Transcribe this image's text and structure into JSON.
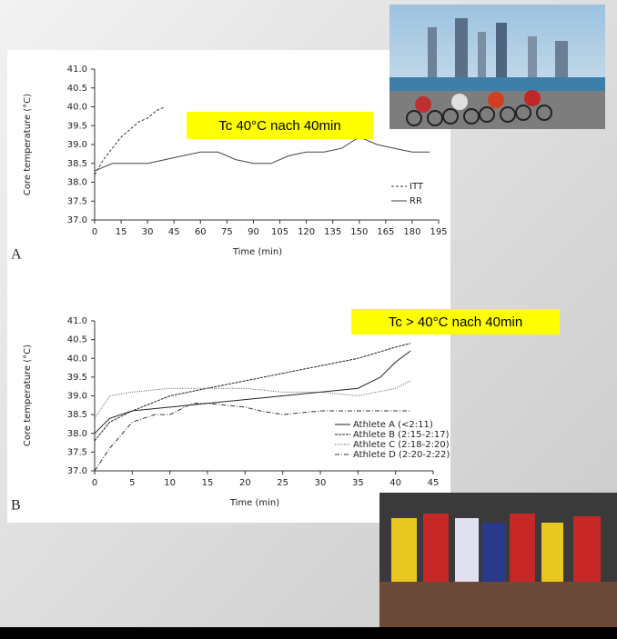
{
  "chart_data": [
    {
      "type": "line",
      "panel_label": "A",
      "x_label": "Time (min)",
      "y_label": "Core temperature (°C)",
      "annotation": "Tc 40°C nach 40min",
      "annotation_color": "#ffff00",
      "legend": "lower right",
      "xlim": [
        0,
        195
      ],
      "xticks": [
        0,
        15,
        30,
        45,
        60,
        75,
        90,
        105,
        120,
        135,
        150,
        165,
        180,
        195
      ],
      "ylim": [
        37,
        41
      ],
      "yticks": [
        {
          "value": 37,
          "label": "37.0"
        },
        37.5,
        {
          "value": 38,
          "label": "38.0"
        },
        38.5,
        {
          "value": 39,
          "label": "39.0"
        },
        39.5,
        {
          "value": 40,
          "label": "40.0"
        },
        40.5,
        {
          "value": 41,
          "label": "41.0"
        }
      ],
      "series": [
        {
          "name": "ITT",
          "color": "#333333",
          "dash": "3,2",
          "x": [
            0,
            5,
            10,
            15,
            20,
            25,
            30,
            35,
            40
          ],
          "values": [
            38.2,
            38.6,
            38.9,
            39.2,
            39.4,
            39.6,
            39.7,
            39.9,
            40.0
          ]
        },
        {
          "name": "RR",
          "color": "#444444",
          "dash": "none",
          "x": [
            0,
            10,
            20,
            30,
            40,
            50,
            60,
            70,
            80,
            90,
            100,
            110,
            120,
            130,
            140,
            150,
            160,
            170,
            180,
            190
          ],
          "values": [
            38.3,
            38.5,
            38.5,
            38.5,
            38.6,
            38.7,
            38.8,
            38.8,
            38.6,
            38.5,
            38.5,
            38.7,
            38.8,
            38.8,
            38.9,
            39.2,
            39.0,
            38.9,
            38.8,
            38.8
          ]
        }
      ]
    },
    {
      "type": "line",
      "panel_label": "B",
      "x_label": "Time (min)",
      "y_label": "Core temperature (°C)",
      "annotation": "Tc > 40°C nach 40min",
      "annotation_color": "#ffff00",
      "legend": "lower right",
      "xlim": [
        0,
        45
      ],
      "xticks": [
        0,
        5,
        10,
        15,
        20,
        25,
        30,
        35,
        40,
        45
      ],
      "ylim": [
        37,
        41
      ],
      "yticks": [
        {
          "value": 37,
          "label": "37.0"
        },
        37.5,
        {
          "value": 38,
          "label": "38.0"
        },
        38.5,
        {
          "value": 39,
          "label": "39.0"
        },
        39.5,
        {
          "value": 40,
          "label": "40.0"
        },
        40.5,
        {
          "value": 41,
          "label": "41.0"
        }
      ],
      "series": [
        {
          "name": "Athlete A (<2:11)",
          "color": "#222222",
          "dash": "none",
          "x": [
            0,
            2,
            5,
            10,
            15,
            20,
            25,
            30,
            35,
            38,
            40,
            42
          ],
          "values": [
            38.0,
            38.4,
            38.6,
            38.7,
            38.8,
            38.9,
            39.0,
            39.1,
            39.2,
            39.5,
            39.9,
            40.2
          ]
        },
        {
          "name": "Athlete B (2:15-2:17)",
          "color": "#222222",
          "dash": "3,1",
          "x": [
            0,
            2,
            5,
            10,
            15,
            20,
            25,
            30,
            35,
            40,
            42
          ],
          "values": [
            37.8,
            38.3,
            38.6,
            39.0,
            39.2,
            39.4,
            39.6,
            39.8,
            40.0,
            40.3,
            40.4
          ]
        },
        {
          "name": "Athlete C (2:18-2:20)",
          "color": "#555555",
          "dash": "1,1.5",
          "x": [
            0,
            2,
            5,
            10,
            15,
            20,
            25,
            30,
            35,
            40,
            42
          ],
          "values": [
            38.4,
            39.0,
            39.1,
            39.2,
            39.2,
            39.2,
            39.1,
            39.1,
            39.0,
            39.2,
            39.4
          ]
        },
        {
          "name": "Athlete D (2:20-2:22)",
          "color": "#333333",
          "dash": "5,2,1,2",
          "x": [
            0,
            2,
            5,
            8,
            10,
            13,
            15,
            20,
            22,
            25,
            30,
            35,
            42
          ],
          "values": [
            37.0,
            37.6,
            38.3,
            38.5,
            38.5,
            38.8,
            38.8,
            38.7,
            38.6,
            38.5,
            38.6,
            38.6,
            38.6
          ]
        }
      ]
    }
  ]
}
